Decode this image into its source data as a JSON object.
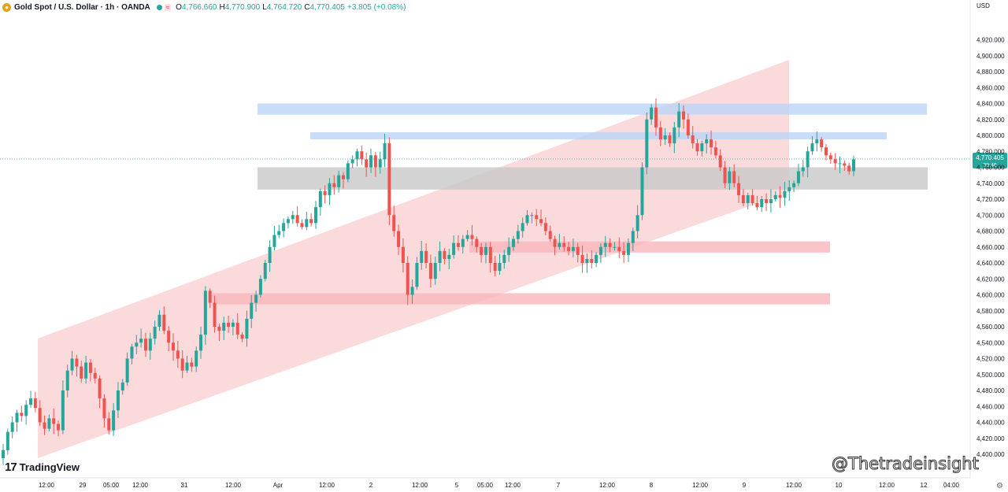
{
  "header": {
    "title": "Gold Spot / U.S. Dollar · 1h · OANDA",
    "symbol_icon": "gold-coin-icon",
    "approx_label": "≈",
    "ohlc": [
      {
        "k": "O",
        "v": "4,766.660"
      },
      {
        "k": "H",
        "v": "4,770.900"
      },
      {
        "k": "L",
        "v": "4,764.720"
      },
      {
        "k": "C",
        "v": "4,770.405"
      }
    ],
    "change": "+3.805 (+0.08%)",
    "currency": "USD"
  },
  "price_tag": {
    "price": "4,770.405",
    "countdown": "39:46",
    "value": 4770.405
  },
  "logo_text": "TradingView",
  "watermark": "@Thetradeinsight",
  "colors": {
    "up": "#26a69a",
    "down": "#ef5350",
    "channel": "#f8bbc0",
    "blue_zone": "#bbd5f7",
    "grey_zone": "#c8c8c8",
    "red_zone": "#f7b6bc"
  },
  "chart_data": {
    "type": "candlestick",
    "title": "Gold Spot / U.S. Dollar · 1h · OANDA",
    "ylim": [
      4390,
      4930
    ],
    "y_ticks": [
      4400,
      4420,
      4440,
      4460,
      4480,
      4500,
      4520,
      4540,
      4560,
      4580,
      4600,
      4620,
      4640,
      4660,
      4680,
      4700,
      4720,
      4740,
      4760,
      4780,
      4800,
      4820,
      4840,
      4860,
      4880,
      4900,
      4920
    ],
    "x_ticks": [
      "12:00",
      "29",
      "05:00",
      "12:00",
      "31",
      "12:00",
      "Apr",
      "12:00",
      "2",
      "12:00",
      "5",
      "05:00",
      "12:00",
      "7",
      "12:00",
      "8",
      "12:00",
      "9",
      "12:00",
      "10",
      "12:00",
      "12",
      "04:00"
    ],
    "close_series": [
      4405,
      4428,
      4440,
      4452,
      4448,
      4462,
      4470,
      4458,
      4440,
      4432,
      4445,
      4438,
      4430,
      4480,
      4505,
      4520,
      4510,
      4495,
      4515,
      4502,
      4495,
      4470,
      4445,
      4430,
      4455,
      4480,
      4490,
      4520,
      4535,
      4540,
      4545,
      4530,
      4545,
      4560,
      4575,
      4555,
      4540,
      4530,
      4520,
      4505,
      4515,
      4510,
      4530,
      4550,
      4605,
      4590,
      4560,
      4555,
      4565,
      4560,
      4565,
      4550,
      4545,
      4570,
      4590,
      4600,
      4620,
      4640,
      4660,
      4675,
      4680,
      4690,
      4695,
      4700,
      4690,
      4685,
      4695,
      4690,
      4710,
      4730,
      4725,
      4740,
      4735,
      4750,
      4745,
      4765,
      4770,
      4780,
      4770,
      4760,
      4775,
      4760,
      4770,
      4790,
      4700,
      4680,
      4660,
      4640,
      4600,
      4610,
      4640,
      4655,
      4640,
      4620,
      4640,
      4655,
      4645,
      4650,
      4665,
      4660,
      4670,
      4675,
      4670,
      4660,
      4650,
      4660,
      4640,
      4630,
      4640,
      4650,
      4660,
      4670,
      4680,
      4690,
      4700,
      4700,
      4695,
      4690,
      4680,
      4670,
      4660,
      4665,
      4660,
      4655,
      4660,
      4650,
      4640,
      4645,
      4640,
      4650,
      4660,
      4665,
      4660,
      4660,
      4655,
      4650,
      4665,
      4680,
      4700,
      4760,
      4820,
      4835,
      4810,
      4795,
      4800,
      4790,
      4810,
      4830,
      4820,
      4800,
      4790,
      4780,
      4790,
      4795,
      4785,
      4775,
      4760,
      4740,
      4755,
      4740,
      4725,
      4715,
      4725,
      4715,
      4710,
      4720,
      4715,
      4720,
      4725,
      4722,
      4730,
      4735,
      4740,
      4755,
      4760,
      4780,
      4790,
      4795,
      4785,
      4775,
      4770,
      4765,
      4765,
      4762,
      4755,
      4770
    ]
  }
}
